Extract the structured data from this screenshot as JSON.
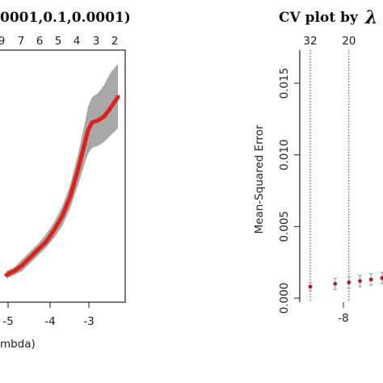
{
  "chart_data": [
    {
      "type": "line",
      "title": "0001,0.1,0.0001)",
      "xlabel": "mbda)",
      "ylabel": "",
      "x_ticks": [
        "-5",
        "-4",
        "-3"
      ],
      "top_ticks": [
        "9",
        "7",
        "6",
        "5",
        "4",
        "3",
        "2",
        "2"
      ],
      "grid": false,
      "legend": "none",
      "colors": {
        "line": "#e0201a",
        "band": "#a8a8a8"
      },
      "series": [
        {
          "x": [
            -5.4,
            -5.2,
            -5.0,
            -4.8,
            -4.6,
            -4.4,
            -4.2,
            -4.0,
            -3.8,
            -3.6,
            -3.45,
            -3.35,
            -3.25,
            -3.1,
            -2.95,
            -2.8,
            -2.6
          ],
          "values": [
            0.02,
            0.04,
            0.07,
            0.11,
            0.15,
            0.19,
            0.25,
            0.32,
            0.42,
            0.56,
            0.68,
            0.76,
            0.8,
            0.81,
            0.83,
            0.87,
            0.93
          ],
          "lower": [
            0.0,
            0.02,
            0.04,
            0.08,
            0.12,
            0.16,
            0.21,
            0.27,
            0.36,
            0.48,
            0.58,
            0.64,
            0.67,
            0.68,
            0.7,
            0.73,
            0.77
          ],
          "upper": [
            0.04,
            0.06,
            0.1,
            0.14,
            0.18,
            0.23,
            0.29,
            0.37,
            0.48,
            0.64,
            0.78,
            0.88,
            0.93,
            0.95,
            0.99,
            1.05,
            1.1
          ]
        }
      ]
    },
    {
      "type": "scatter",
      "title": "CV plot by",
      "title_symbol": "λ",
      "xlabel": "",
      "ylabel": "Mean-Squared Error",
      "ylim": [
        0,
        0.017
      ],
      "y_ticks": [
        "0.000",
        "0.005",
        "0.010",
        "0.015"
      ],
      "x_ticks": [
        "-8"
      ],
      "top_ticks": [
        "32",
        "20"
      ],
      "vlines_x": [
        -9.2,
        -7.8
      ],
      "grid": false,
      "legend": "none",
      "colors": {
        "point": "#c0161b",
        "errorbar": "#9a9a9a",
        "vline": "#333333"
      },
      "series": [
        {
          "x": [
            -9.2,
            -8.3,
            -7.8,
            -7.4,
            -7.0,
            -6.6
          ],
          "values": [
            0.0008,
            0.001,
            0.0011,
            0.0012,
            0.0013,
            0.0014
          ],
          "lower": [
            0.0005,
            0.0006,
            0.0007,
            0.0008,
            0.0009,
            0.001
          ],
          "upper": [
            0.0011,
            0.0014,
            0.0015,
            0.0016,
            0.0017,
            0.0018
          ]
        }
      ]
    }
  ]
}
